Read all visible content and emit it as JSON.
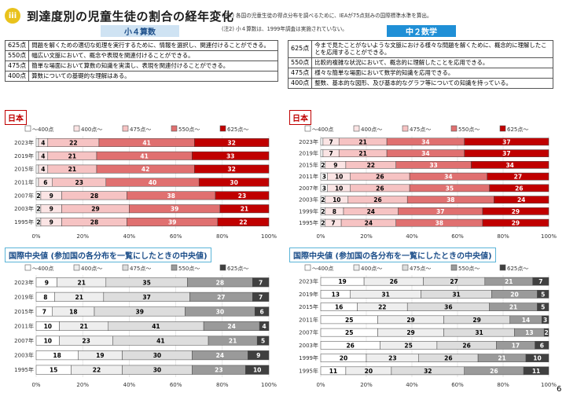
{
  "header": {
    "roman": "iii",
    "title": "到達度別の児童生徒の割合の経年変化"
  },
  "notes": [
    "(注1) 各国の児童生徒の得点分布を調べるために、IEAが75点刻みの国際標準水準を算出。",
    "(注2) 小４算数は、1999年調査は実施されていない。"
  ],
  "columns": {
    "left_title": "小４算数",
    "right_title": "中２数学"
  },
  "levels_left": [
    {
      "pts": "625点",
      "text": "問題を解くための適切な処理を実行するために、情報を選択し、関連付けることができる。"
    },
    {
      "pts": "550点",
      "text": "幅広い文脈において、概念や表現を関連付けることができる。"
    },
    {
      "pts": "475点",
      "text": "簡単な場面において算数の知識を実演し、表現を関連付けることができる。"
    },
    {
      "pts": "400点",
      "text": "算数についての基礎的な理解はある。"
    }
  ],
  "levels_right": [
    {
      "pts": "625点",
      "text": "今まで見たことがないような文脈における様々な問題を解くために、概念的に理解したことを応用することができる。"
    },
    {
      "pts": "550点",
      "text": "比較的複雑な状況において、概念的に理解したことを応用できる。"
    },
    {
      "pts": "475点",
      "text": "様々な簡単な場面において数学的知識を応用できる。"
    },
    {
      "pts": "400点",
      "text": "整数、基本的な図形、及び基本的なグラフ等についての知識を持っている。"
    }
  ],
  "sections": {
    "japan": "日本",
    "median": "国際中央値 (参加国の各分布を一覧にしたときの中央値)"
  },
  "page_number": "6",
  "chart_data": [
    {
      "id": "jp-g4",
      "type": "bar",
      "stacked": true,
      "orientation": "horizontal",
      "categories": [
        "2023年",
        "2019年",
        "2015年",
        "2011年",
        "2007年",
        "2003年",
        "1995年"
      ],
      "legend": [
        "〜400点",
        "400点〜",
        "475点〜",
        "550点〜",
        "625点〜"
      ],
      "xticks": [
        "0%",
        "20%",
        "40%",
        "60%",
        "80%",
        "100%"
      ],
      "xlim": [
        0,
        100
      ],
      "series": [
        {
          "name": "〜400点",
          "values": [
            1,
            1,
            1,
            1,
            2,
            2,
            2
          ]
        },
        {
          "name": "400点〜",
          "values": [
            4,
            4,
            4,
            6,
            9,
            9,
            9
          ]
        },
        {
          "name": "475点〜",
          "values": [
            22,
            21,
            21,
            23,
            28,
            29,
            28
          ]
        },
        {
          "name": "550点〜",
          "values": [
            41,
            41,
            42,
            40,
            38,
            39,
            39
          ]
        },
        {
          "name": "625点〜",
          "values": [
            32,
            33,
            32,
            30,
            23,
            21,
            22
          ]
        }
      ],
      "labels": [
        [
          "",
          "4",
          "22",
          "41",
          "32"
        ],
        [
          "",
          "4",
          "21",
          "41",
          "33"
        ],
        [
          "",
          "4",
          "21",
          "42",
          "32"
        ],
        [
          "",
          "6",
          "23",
          "40",
          "30"
        ],
        [
          "2",
          "9",
          "28",
          "38",
          "23"
        ],
        [
          "2",
          "9",
          "29",
          "39",
          "21"
        ],
        [
          "2",
          "9",
          "28",
          "39",
          "22"
        ]
      ],
      "colors": [
        "#ffffff",
        "#fbe4e4",
        "#f6c3c3",
        "#e07070",
        "#c00000"
      ]
    },
    {
      "id": "jp-g8",
      "type": "bar",
      "stacked": true,
      "orientation": "horizontal",
      "categories": [
        "2023年",
        "2019年",
        "2015年",
        "2011年",
        "2007年",
        "2003年",
        "1999年",
        "1995年"
      ],
      "legend": [
        "〜400点",
        "400点〜",
        "475点〜",
        "550点〜",
        "625点〜"
      ],
      "xticks": [
        "0%",
        "20%",
        "40%",
        "60%",
        "80%",
        "100%"
      ],
      "xlim": [
        0,
        100
      ],
      "series": [
        {
          "name": "〜400点",
          "values": [
            1,
            1,
            2,
            3,
            3,
            2,
            2,
            2
          ]
        },
        {
          "name": "400点〜",
          "values": [
            7,
            7,
            9,
            10,
            10,
            10,
            8,
            7
          ]
        },
        {
          "name": "475点〜",
          "values": [
            21,
            21,
            22,
            26,
            26,
            26,
            24,
            24
          ]
        },
        {
          "name": "550点〜",
          "values": [
            34,
            34,
            33,
            34,
            35,
            38,
            37,
            38
          ]
        },
        {
          "name": "625点〜",
          "values": [
            37,
            37,
            34,
            27,
            26,
            24,
            29,
            29
          ]
        }
      ],
      "labels": [
        [
          "",
          "7",
          "21",
          "34",
          "37"
        ],
        [
          "",
          "7",
          "21",
          "34",
          "37"
        ],
        [
          "2",
          "9",
          "22",
          "33",
          "34"
        ],
        [
          "3",
          "10",
          "26",
          "34",
          "27"
        ],
        [
          "3",
          "10",
          "26",
          "35",
          "26"
        ],
        [
          "2",
          "10",
          "26",
          "38",
          "24"
        ],
        [
          "2",
          "8",
          "24",
          "37",
          "29"
        ],
        [
          "2",
          "7",
          "24",
          "38",
          "29"
        ]
      ],
      "colors": [
        "#ffffff",
        "#fbe4e4",
        "#f6c3c3",
        "#e07070",
        "#c00000"
      ]
    },
    {
      "id": "med-g4",
      "type": "bar",
      "stacked": true,
      "orientation": "horizontal",
      "categories": [
        "2023年",
        "2019年",
        "2015年",
        "2011年",
        "2007年",
        "2003年",
        "1995年"
      ],
      "legend": [
        "〜400点",
        "400点〜",
        "475点〜",
        "550点〜",
        "625点〜"
      ],
      "xticks": [
        "0%",
        "20%",
        "40%",
        "60%",
        "80%",
        "100%"
      ],
      "xlim": [
        0,
        100
      ],
      "series": [
        {
          "name": "〜400点",
          "values": [
            9,
            8,
            7,
            10,
            10,
            18,
            15
          ]
        },
        {
          "name": "400点〜",
          "values": [
            21,
            21,
            18,
            21,
            23,
            19,
            22
          ]
        },
        {
          "name": "475点〜",
          "values": [
            35,
            37,
            39,
            41,
            41,
            30,
            30
          ]
        },
        {
          "name": "550点〜",
          "values": [
            28,
            27,
            30,
            24,
            21,
            24,
            23
          ]
        },
        {
          "name": "625点〜",
          "values": [
            7,
            7,
            6,
            4,
            5,
            9,
            10
          ]
        }
      ],
      "labels": [
        [
          "9",
          "21",
          "35",
          "28",
          "7"
        ],
        [
          "8",
          "21",
          "37",
          "27",
          "7"
        ],
        [
          "7",
          "18",
          "39",
          "30",
          "6"
        ],
        [
          "10",
          "21",
          "41",
          "24",
          "4"
        ],
        [
          "10",
          "23",
          "41",
          "21",
          "5"
        ],
        [
          "18",
          "19",
          "30",
          "24",
          "9"
        ],
        [
          "15",
          "22",
          "30",
          "23",
          "10"
        ]
      ],
      "colors": [
        "#ffffff",
        "#eeeeee",
        "#dddddd",
        "#9a9a9a",
        "#404040"
      ]
    },
    {
      "id": "med-g8",
      "type": "bar",
      "stacked": true,
      "orientation": "horizontal",
      "categories": [
        "2023年",
        "2019年",
        "2015年",
        "2011年",
        "2007年",
        "2003年",
        "1999年",
        "1995年"
      ],
      "legend": [
        "〜400点",
        "400点〜",
        "475点〜",
        "550点〜",
        "625点〜"
      ],
      "xticks": [
        "0%",
        "20%",
        "40%",
        "60%",
        "80%",
        "100%"
      ],
      "xlim": [
        0,
        100
      ],
      "series": [
        {
          "name": "〜400点",
          "values": [
            19,
            13,
            16,
            25,
            25,
            26,
            20,
            11
          ]
        },
        {
          "name": "400点〜",
          "values": [
            26,
            31,
            22,
            29,
            29,
            25,
            23,
            20
          ]
        },
        {
          "name": "475点〜",
          "values": [
            27,
            31,
            36,
            29,
            31,
            26,
            26,
            32
          ]
        },
        {
          "name": "550点〜",
          "values": [
            21,
            20,
            21,
            14,
            13,
            17,
            21,
            26
          ]
        },
        {
          "name": "625点〜",
          "values": [
            7,
            5,
            5,
            3,
            2,
            6,
            10,
            11
          ]
        }
      ],
      "labels": [
        [
          "19",
          "26",
          "27",
          "21",
          "7"
        ],
        [
          "13",
          "31",
          "31",
          "20",
          "5"
        ],
        [
          "16",
          "22",
          "36",
          "21",
          "5"
        ],
        [
          "25",
          "29",
          "29",
          "14",
          "3"
        ],
        [
          "25",
          "29",
          "31",
          "13",
          "2"
        ],
        [
          "26",
          "25",
          "26",
          "17",
          "6"
        ],
        [
          "20",
          "23",
          "26",
          "21",
          "10"
        ],
        [
          "11",
          "20",
          "32",
          "26",
          "11"
        ]
      ],
      "colors": [
        "#ffffff",
        "#eeeeee",
        "#dddddd",
        "#9a9a9a",
        "#404040"
      ]
    }
  ]
}
